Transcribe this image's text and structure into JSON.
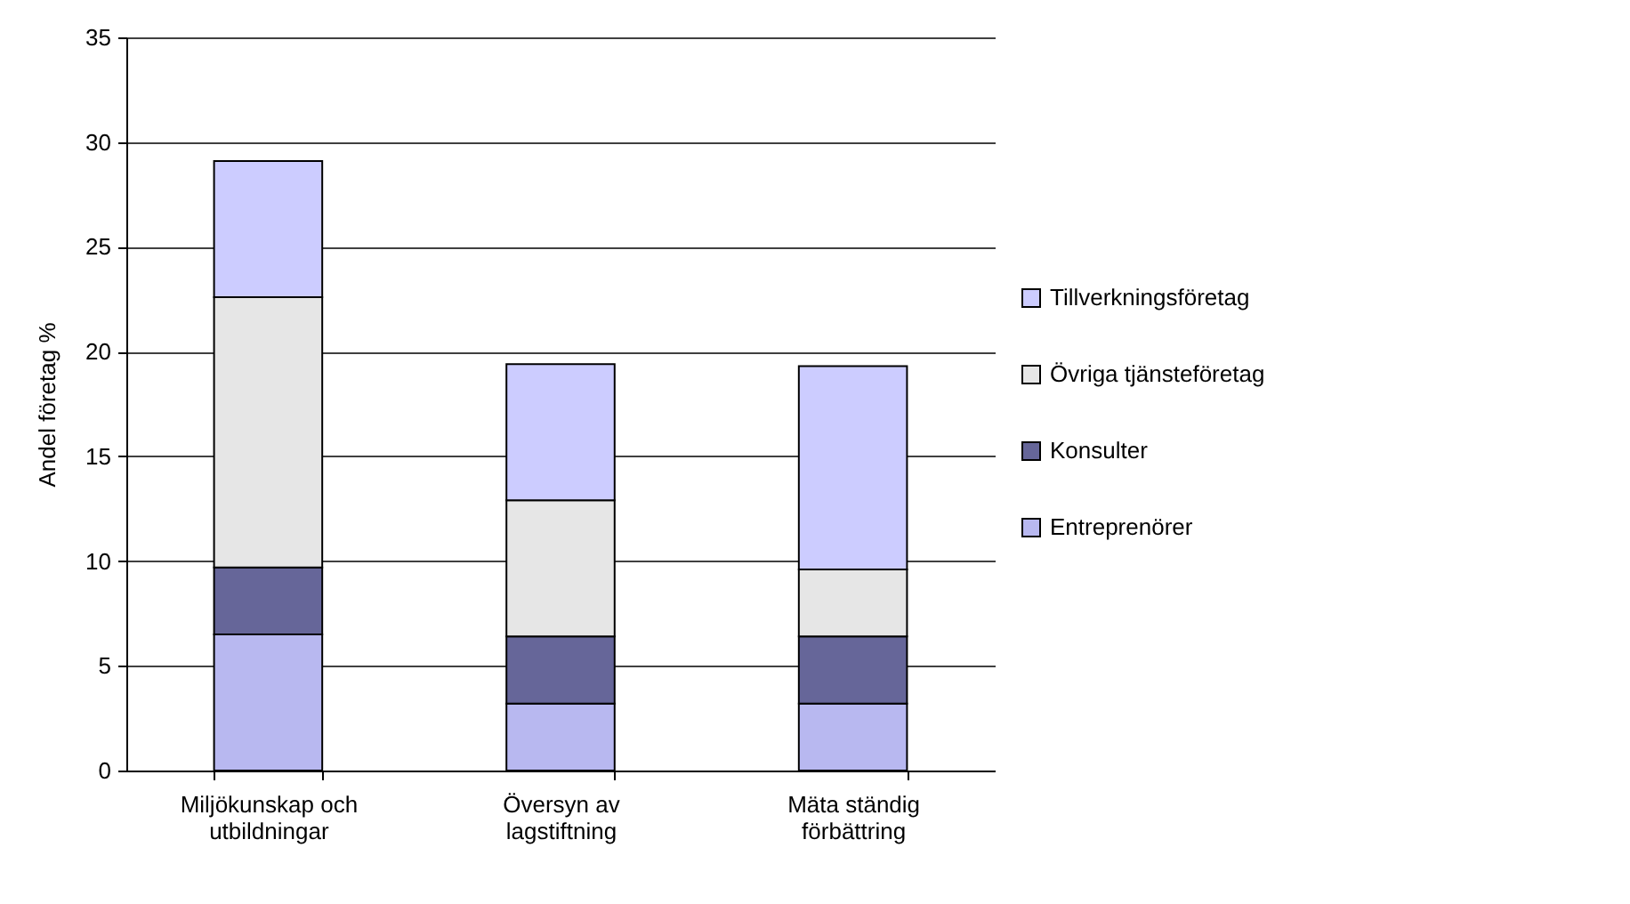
{
  "chart_data": {
    "type": "bar",
    "stacked": true,
    "ylabel": "Andel företag %",
    "categories": [
      "Miljökunskap och utbildningar",
      "Översyn av lagstiftning",
      "Mäta ständig förbättring"
    ],
    "series": [
      {
        "name": "Entreprenörer",
        "color": "#b8b8f0",
        "values": [
          6.5,
          3.2,
          3.2
        ]
      },
      {
        "name": "Konsulter",
        "color": "#666699",
        "values": [
          3.2,
          3.2,
          3.2
        ]
      },
      {
        "name": "Övriga tjänsteföretag",
        "color": "#e6e6e6",
        "values": [
          12.9,
          6.5,
          3.2
        ]
      },
      {
        "name": "Tillverkningsföretag",
        "color": "#ccccff",
        "values": [
          6.5,
          6.5,
          9.7
        ]
      }
    ],
    "ylim": [
      0,
      35
    ],
    "yticks": [
      0,
      5,
      10,
      15,
      20,
      25,
      30,
      35
    ],
    "grid": "y",
    "legend": "right"
  }
}
